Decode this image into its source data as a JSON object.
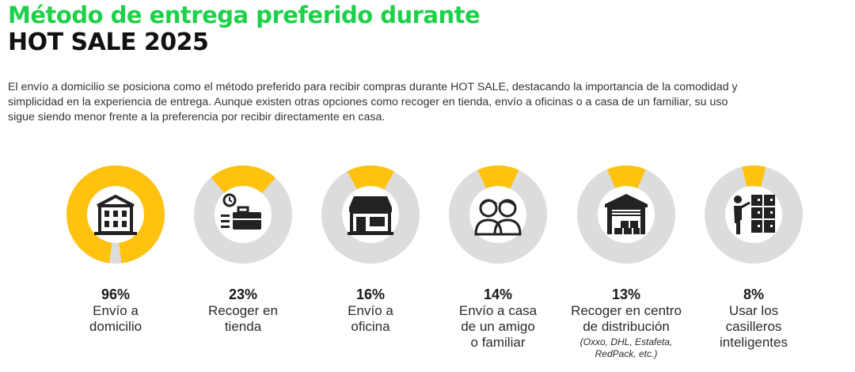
{
  "header": {
    "title_line1": "Método de entrega preferido durante",
    "title_line2": "HOT SALE 2025",
    "title_color": "#1fd04a"
  },
  "description": [
    "El envío a domicilio se posiciona como el método preferido para recibir compras durante HOT SALE, destacando la importancia de la comodidad y",
    "simplicidad en la experiencia de entrega. Aunque existen otras opciones como recoger en tienda, envío a oficinas o a casa de un familiar, su uso",
    "sigue siendo menor frente a la preferencia por recibir directamente en casa."
  ],
  "colors": {
    "accent": "#ffc20e",
    "track": "#dcdcdc",
    "icon": "#222222"
  },
  "chart_data": {
    "type": "pie",
    "variant": "donut",
    "items": [
      {
        "value": 96,
        "pct_label": "96%",
        "label_lines": [
          "Envío a",
          "domicilio"
        ],
        "note_lines": [],
        "icon": "warehouse-icon"
      },
      {
        "value": 23,
        "pct_label": "23%",
        "label_lines": [
          "Recoger en",
          "tienda"
        ],
        "note_lines": [],
        "icon": "briefcase-clock-icon"
      },
      {
        "value": 16,
        "pct_label": "16%",
        "label_lines": [
          "Envío a",
          "oficina"
        ],
        "note_lines": [],
        "icon": "storefront-icon"
      },
      {
        "value": 14,
        "pct_label": "14%",
        "label_lines": [
          "Envío a casa",
          "de un amigo",
          "o familiar"
        ],
        "note_lines": [],
        "icon": "two-people-icon"
      },
      {
        "value": 13,
        "pct_label": "13%",
        "label_lines": [
          "Recoger en centro",
          "de distribución"
        ],
        "note_lines": [
          "(Oxxo, DHL, Estafeta,",
          "RedPack, etc.)"
        ],
        "icon": "garage-boxes-icon"
      },
      {
        "value": 8,
        "pct_label": "8%",
        "label_lines": [
          "Usar los",
          "casilleros",
          "inteligentes"
        ],
        "note_lines": [],
        "icon": "locker-person-icon"
      }
    ]
  }
}
